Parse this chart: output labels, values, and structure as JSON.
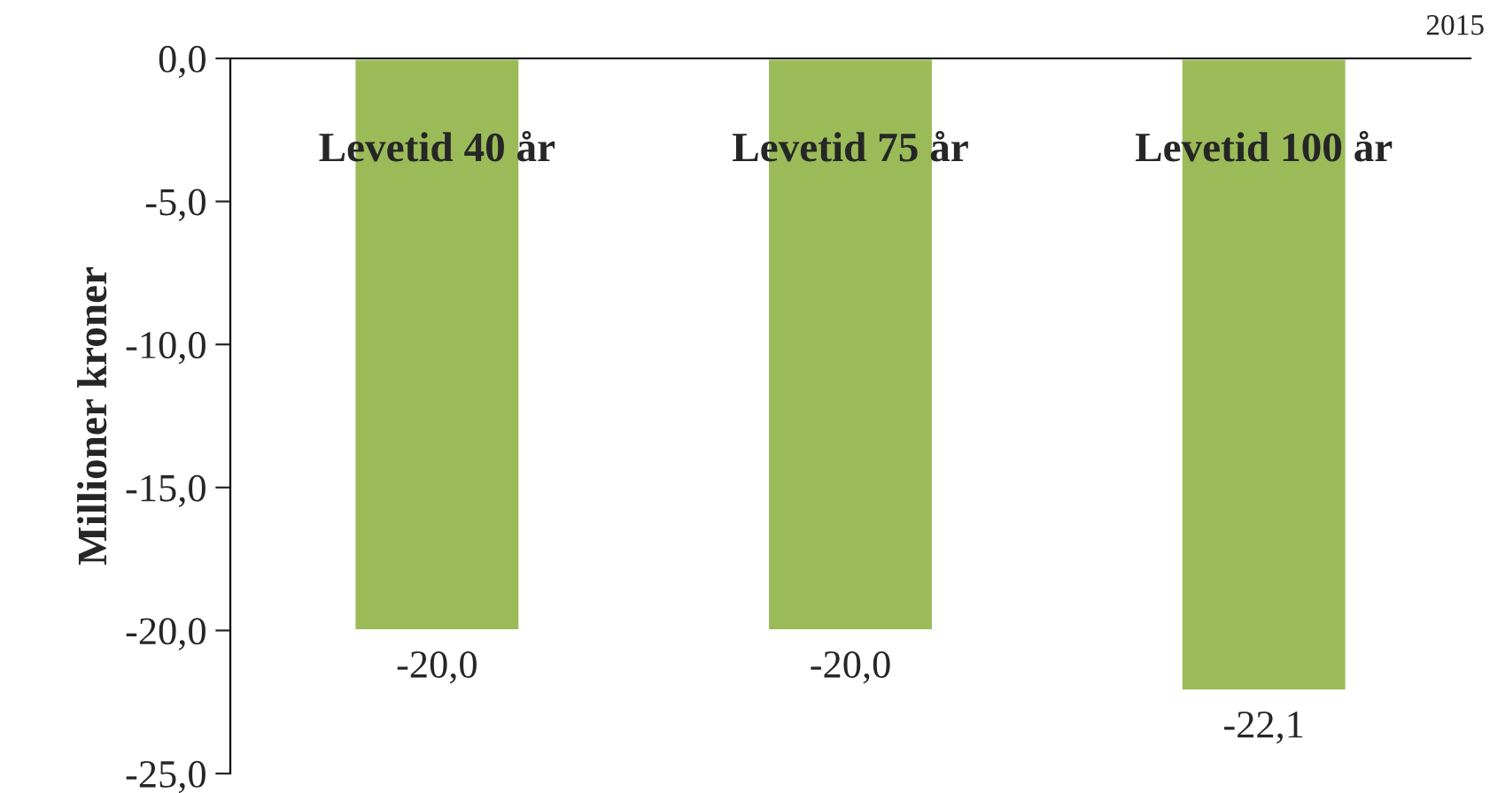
{
  "chart_data": {
    "type": "bar",
    "ylabel": "Millioner kroner",
    "categories": [
      "Levetid 40 år",
      "Levetid 75 år",
      "Levetid 100 år"
    ],
    "values": [
      -20.0,
      -20.0,
      -22.1
    ],
    "color": "#9bbb59",
    "value_labels": [
      "-20,0",
      "-20,0",
      "-22,1"
    ],
    "ylim": [
      -25,
      0
    ],
    "yticks": [
      {
        "value": 0,
        "label": "0,0"
      },
      {
        "value": -5,
        "label": "-5,0"
      },
      {
        "value": -10,
        "label": "-10,0"
      },
      {
        "value": -15,
        "label": "-15,0"
      },
      {
        "value": -20,
        "label": "-20,0"
      },
      {
        "value": -25,
        "label": "-25,0"
      }
    ],
    "grid": false,
    "annotations": [
      "2015"
    ]
  }
}
